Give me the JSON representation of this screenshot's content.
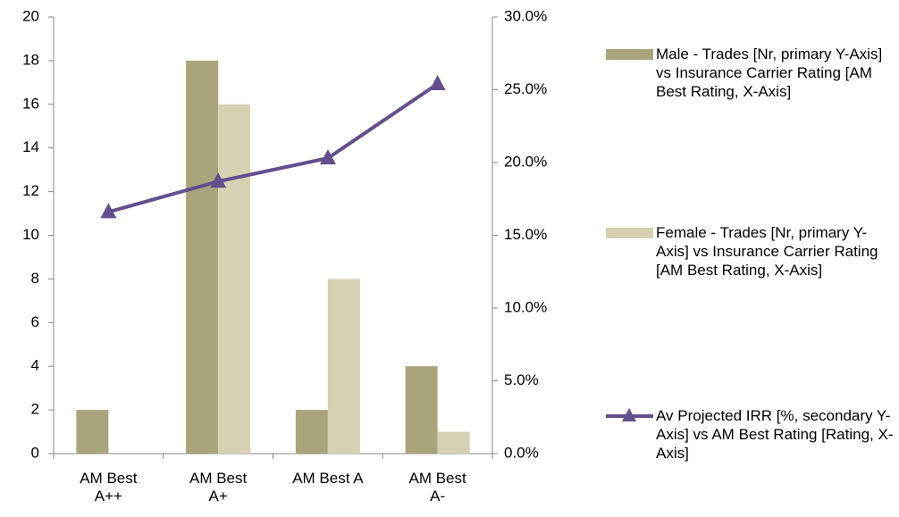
{
  "chart_data": {
    "type": "bar-line",
    "categories": [
      "AM Best A++",
      "AM Best A+",
      "AM Best A",
      "AM Best A-"
    ],
    "series": [
      {
        "name": "Male - Trades [Nr, primary Y-Axis] vs Insurance Carrier Rating [AM Best Rating, X-Axis]",
        "type": "bar",
        "color": "#a9a47b",
        "values": [
          2,
          18,
          2,
          4
        ]
      },
      {
        "name": "Female - Trades [Nr, primary Y-Axis] vs Insurance Carrier Rating [AM Best Rating, X-Axis]",
        "type": "bar",
        "color": "#d6d1b2",
        "values": [
          0,
          16,
          8,
          1
        ]
      },
      {
        "name": "Av Projected IRR [%, secondary Y-Axis] vs AM Best Rating [Rating, X-Axis]",
        "type": "line",
        "color": "#624f8c",
        "axis": "y2",
        "values": [
          16.6,
          18.7,
          20.3,
          25.4
        ]
      }
    ],
    "ylim": [
      0,
      20
    ],
    "yticks": [
      0,
      2,
      4,
      6,
      8,
      10,
      12,
      14,
      16,
      18,
      20
    ],
    "y2lim": [
      0,
      30
    ],
    "y2ticks": [
      {
        "value": 0,
        "label": "0.0%"
      },
      {
        "value": 5,
        "label": "5.0%"
      },
      {
        "value": 10,
        "label": "10.0%"
      },
      {
        "value": 15,
        "label": "15.0%"
      },
      {
        "value": 20,
        "label": "20.0%"
      },
      {
        "value": 25,
        "label": "25.0%"
      },
      {
        "value": 30,
        "label": "30.0%"
      }
    ],
    "legend": "right",
    "grid": false
  }
}
